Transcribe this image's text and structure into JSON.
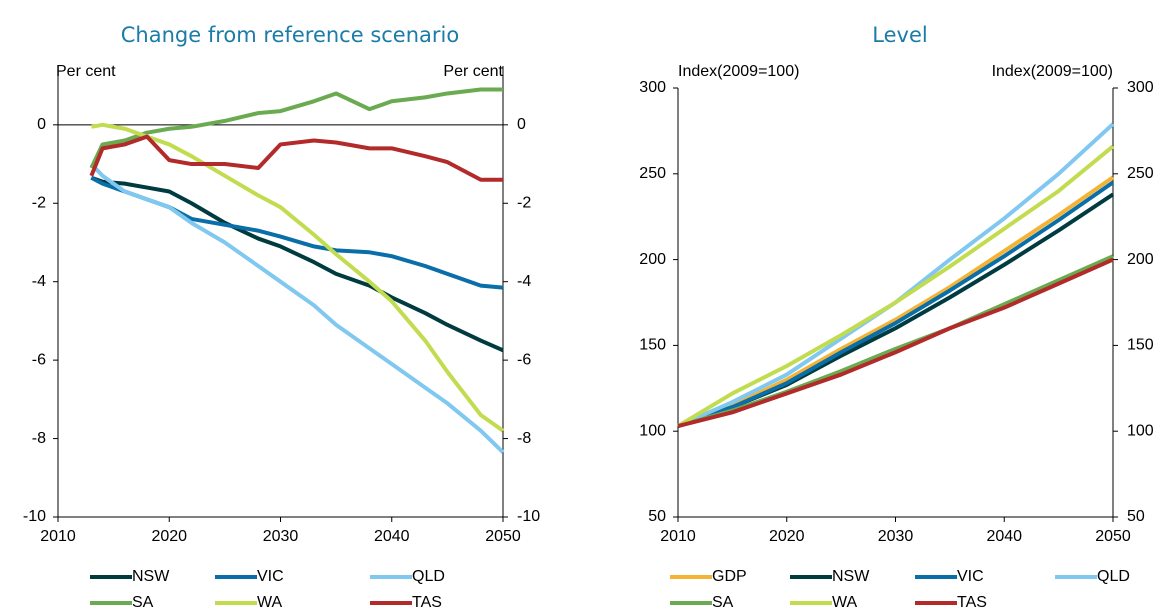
{
  "chart_data": [
    {
      "type": "line",
      "title": "Change from reference scenario",
      "y_label": "Per cent",
      "y2_label": "Per cent",
      "x": [
        2013,
        2014,
        2016,
        2018,
        2020,
        2022,
        2025,
        2028,
        2030,
        2033,
        2035,
        2038,
        2040,
        2043,
        2045,
        2048,
        2050
      ],
      "xlim": [
        2010,
        2050
      ],
      "xticks": [
        2010,
        2020,
        2030,
        2040,
        2050
      ],
      "ylim": [
        -10,
        1.5
      ],
      "yticks": [
        -10,
        -8,
        -6,
        -4,
        -2,
        0
      ],
      "series": [
        {
          "name": "NSW",
          "color": "#003b40",
          "values": [
            -1.35,
            -1.45,
            -1.5,
            -1.6,
            -1.7,
            -2.0,
            -2.5,
            -2.9,
            -3.1,
            -3.5,
            -3.8,
            -4.1,
            -4.4,
            -4.8,
            -5.1,
            -5.5,
            -5.75
          ]
        },
        {
          "name": "VIC",
          "color": "#0a6ea8",
          "values": [
            -1.35,
            -1.5,
            -1.7,
            -1.9,
            -2.1,
            -2.4,
            -2.55,
            -2.7,
            -2.85,
            -3.1,
            -3.2,
            -3.25,
            -3.35,
            -3.6,
            -3.8,
            -4.1,
            -4.15
          ]
        },
        {
          "name": "QLD",
          "color": "#80c8f0",
          "values": [
            -1.0,
            -1.3,
            -1.7,
            -1.9,
            -2.1,
            -2.5,
            -3.0,
            -3.6,
            -4.0,
            -4.6,
            -5.1,
            -5.7,
            -6.1,
            -6.7,
            -7.1,
            -7.8,
            -8.35
          ]
        },
        {
          "name": "SA",
          "color": "#6aaa50",
          "values": [
            -1.1,
            -0.5,
            -0.4,
            -0.2,
            -0.1,
            -0.05,
            0.1,
            0.3,
            0.35,
            0.6,
            0.8,
            0.4,
            0.6,
            0.7,
            0.8,
            0.9,
            0.9
          ]
        },
        {
          "name": "WA",
          "color": "#c2dc4f",
          "values": [
            -0.05,
            0,
            -0.1,
            -0.3,
            -0.5,
            -0.8,
            -1.3,
            -1.8,
            -2.1,
            -2.8,
            -3.3,
            -4.0,
            -4.5,
            -5.5,
            -6.3,
            -7.4,
            -7.8
          ]
        },
        {
          "name": "TAS",
          "color": "#b22a2a",
          "values": [
            -1.3,
            -0.6,
            -0.5,
            -0.3,
            -0.9,
            -1.0,
            -1.0,
            -1.1,
            -0.5,
            -0.4,
            -0.45,
            -0.6,
            -0.6,
            -0.8,
            -0.95,
            -1.4,
            -1.4
          ]
        }
      ]
    },
    {
      "type": "line",
      "title": "Level",
      "y_label": "Index(2009=100)",
      "y2_label": "Index(2009=100)",
      "x": [
        2010,
        2015,
        2020,
        2025,
        2030,
        2035,
        2040,
        2045,
        2050
      ],
      "xlim": [
        2010,
        2050
      ],
      "xticks": [
        2010,
        2020,
        2030,
        2040,
        2050
      ],
      "ylim": [
        50,
        300
      ],
      "yticks": [
        50,
        100,
        150,
        200,
        250,
        300
      ],
      "series": [
        {
          "name": "GDP",
          "color": "#f5b335",
          "values": [
            103,
            115,
            130,
            148,
            165,
            184,
            205,
            226,
            248
          ]
        },
        {
          "name": "NSW",
          "color": "#003b40",
          "values": [
            103,
            114,
            127,
            144,
            160,
            178,
            197,
            217,
            238
          ]
        },
        {
          "name": "VIC",
          "color": "#0a6ea8",
          "values": [
            103,
            114,
            128,
            146,
            163,
            182,
            202,
            223,
            245
          ]
        },
        {
          "name": "QLD",
          "color": "#80c8f0",
          "values": [
            103,
            117,
            133,
            154,
            175,
            200,
            224,
            250,
            279
          ]
        },
        {
          "name": "SA",
          "color": "#6aaa50",
          "values": [
            103,
            112,
            123,
            135,
            148,
            160,
            174,
            188,
            202
          ]
        },
        {
          "name": "WA",
          "color": "#c2dc4f",
          "values": [
            103,
            122,
            138,
            156,
            175,
            196,
            218,
            240,
            266
          ]
        },
        {
          "name": "TAS",
          "color": "#b22a2a",
          "values": [
            103,
            111,
            122,
            133,
            146,
            160,
            172,
            186,
            200
          ]
        }
      ]
    }
  ]
}
